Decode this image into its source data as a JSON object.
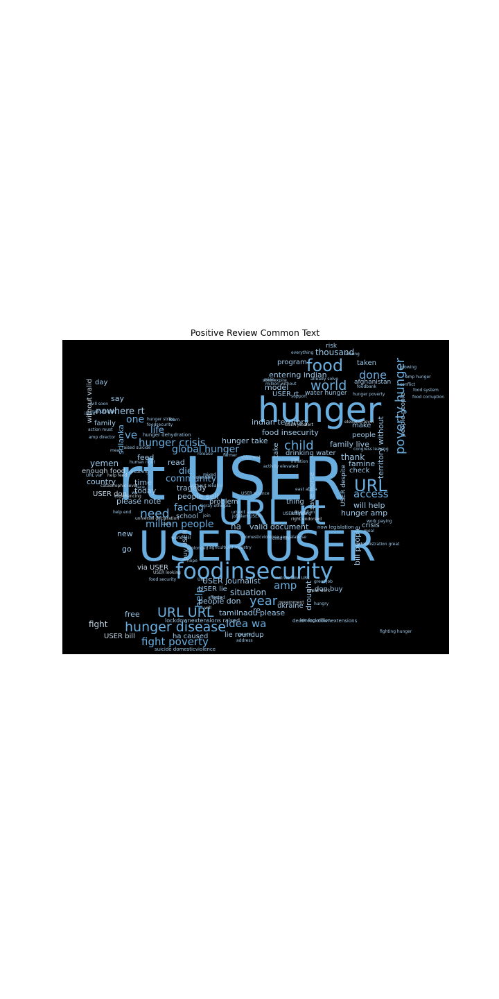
{
  "figure": {
    "title": "Positive Review Common Text"
  },
  "colors": {
    "background": "#000000",
    "primary_word": "#6aaee0",
    "secondary_word": "#9ec9ea",
    "tertiary_word": "#c7d9e8"
  },
  "word_cloud": {
    "words": [
      {
        "text": "rt USER",
        "size": "xl",
        "color": "primary_word"
      },
      {
        "text": "hunger",
        "size": "xl",
        "color": "primary_word"
      },
      {
        "text": "USER USER",
        "size": "xl",
        "color": "primary_word"
      },
      {
        "text": "URL rt",
        "size": "l",
        "color": "primary_word"
      },
      {
        "text": "foodinsecurity",
        "size": "l",
        "color": "primary_word"
      },
      {
        "text": "food",
        "size": "m",
        "color": "primary_word"
      },
      {
        "text": "URL",
        "size": "m",
        "color": "primary_word"
      },
      {
        "text": "world",
        "size": "m",
        "color": "primary_word"
      },
      {
        "text": "done",
        "size": "m",
        "color": "primary_word"
      },
      {
        "text": "child",
        "size": "m",
        "color": "primary_word"
      },
      {
        "text": "hunger disease",
        "size": "m",
        "color": "primary_word"
      },
      {
        "text": "URL URL",
        "size": "m",
        "color": "primary_word"
      },
      {
        "text": "need",
        "size": "m",
        "color": "primary_word"
      },
      {
        "text": "hunger crisis",
        "size": "m",
        "color": "primary_word"
      },
      {
        "text": "global hunger",
        "size": "s",
        "color": "primary_word"
      },
      {
        "text": "fight poverty",
        "size": "s",
        "color": "primary_word"
      },
      {
        "text": "idea wa",
        "size": "s",
        "color": "primary_word"
      },
      {
        "text": "year",
        "size": "m",
        "color": "primary_word"
      },
      {
        "text": "million people",
        "size": "s",
        "color": "primary_word"
      },
      {
        "text": "access",
        "size": "s",
        "color": "primary_word"
      },
      {
        "text": "poverty hunger",
        "size": "m",
        "color": "primary_word"
      },
      {
        "text": "nowhere rt",
        "size": "s",
        "color": "secondary_word"
      },
      {
        "text": "one",
        "size": "s",
        "color": "primary_word"
      },
      {
        "text": "ve",
        "size": "s",
        "color": "primary_word"
      },
      {
        "text": "life",
        "size": "s",
        "color": "primary_word"
      },
      {
        "text": "facing",
        "size": "s",
        "color": "primary_word"
      },
      {
        "text": "community",
        "size": "s",
        "color": "primary_word"
      },
      {
        "text": "die",
        "size": "s",
        "color": "primary_word"
      },
      {
        "text": "amp",
        "size": "s",
        "color": "primary_word"
      },
      {
        "text": "help",
        "size": "s",
        "color": "primary_word"
      },
      {
        "text": "situation",
        "size": "s",
        "color": "secondary_word"
      },
      {
        "text": "thousand",
        "size": "s",
        "color": "secondary_word"
      },
      {
        "text": "risk",
        "size": "xs",
        "color": "secondary_word"
      },
      {
        "text": "program",
        "size": "xs",
        "color": "secondary_word"
      },
      {
        "text": "entering indian",
        "size": "xs",
        "color": "secondary_word"
      },
      {
        "text": "model",
        "size": "xs",
        "color": "secondary_word"
      },
      {
        "text": "USER rt",
        "size": "xs",
        "color": "secondary_word"
      },
      {
        "text": "indian territory",
        "size": "xs",
        "color": "secondary_word"
      },
      {
        "text": "food insecurity",
        "size": "xs",
        "color": "secondary_word"
      },
      {
        "text": "drinking water",
        "size": "xs",
        "color": "secondary_word"
      },
      {
        "text": "hunger take",
        "size": "xs",
        "color": "secondary_word"
      },
      {
        "text": "family live",
        "size": "xs",
        "color": "secondary_word"
      },
      {
        "text": "thank",
        "size": "xs",
        "color": "secondary_word"
      },
      {
        "text": "famine",
        "size": "xs",
        "color": "secondary_word"
      },
      {
        "text": "check",
        "size": "xs",
        "color": "secondary_word"
      },
      {
        "text": "people",
        "size": "xs",
        "color": "secondary_word"
      },
      {
        "text": "make",
        "size": "xs",
        "color": "secondary_word"
      },
      {
        "text": "will help",
        "size": "xs",
        "color": "secondary_word"
      },
      {
        "text": "hunger amp",
        "size": "xs",
        "color": "secondary_word"
      },
      {
        "text": "crisis",
        "size": "xs",
        "color": "secondary_word"
      },
      {
        "text": "taken",
        "size": "xs",
        "color": "secondary_word"
      },
      {
        "text": "afghanistan",
        "size": "xs",
        "color": "secondary_word"
      },
      {
        "text": "water hunger",
        "size": "xs",
        "color": "secondary_word"
      },
      {
        "text": "yemen",
        "size": "xs",
        "color": "secondary_word"
      },
      {
        "text": "enough food",
        "size": "xs",
        "color": "tertiary_word"
      },
      {
        "text": "country",
        "size": "xs",
        "color": "secondary_word"
      },
      {
        "text": "USER don",
        "size": "xs",
        "color": "tertiary_word"
      },
      {
        "text": "feed",
        "size": "xs",
        "color": "secondary_word"
      },
      {
        "text": "time",
        "size": "xs",
        "color": "secondary_word"
      },
      {
        "text": "today",
        "size": "xs",
        "color": "secondary_word"
      },
      {
        "text": "please note",
        "size": "xs",
        "color": "secondary_word"
      },
      {
        "text": "read",
        "size": "xs",
        "color": "secondary_word"
      },
      {
        "text": "tragedy",
        "size": "xs",
        "color": "secondary_word"
      },
      {
        "text": "people sell",
        "size": "xs",
        "color": "secondary_word"
      },
      {
        "text": "problem",
        "size": "xs",
        "color": "secondary_word"
      },
      {
        "text": "school",
        "size": "xs",
        "color": "secondary_word"
      },
      {
        "text": "ha",
        "size": "xs",
        "color": "secondary_word"
      },
      {
        "text": "valid document",
        "size": "xs",
        "color": "secondary_word"
      },
      {
        "text": "thing",
        "size": "xs",
        "color": "secondary_word"
      },
      {
        "text": "new",
        "size": "xs",
        "color": "secondary_word"
      },
      {
        "text": "go",
        "size": "xs",
        "color": "secondary_word"
      },
      {
        "text": "via USER",
        "size": "xs",
        "color": "tertiary_word"
      },
      {
        "text": "USER journalist",
        "size": "xs",
        "color": "secondary_word"
      },
      {
        "text": "USER lie",
        "size": "xs",
        "color": "secondary_word"
      },
      {
        "text": "people don",
        "size": "xs",
        "color": "secondary_word"
      },
      {
        "text": "tamilnadu please",
        "size": "xs",
        "color": "secondary_word"
      },
      {
        "text": "ukraine",
        "size": "xs",
        "color": "secondary_word"
      },
      {
        "text": "don buy",
        "size": "xs",
        "color": "secondary_word"
      },
      {
        "text": "re",
        "size": "xs",
        "color": "secondary_word"
      },
      {
        "text": "free",
        "size": "xs",
        "color": "secondary_word"
      },
      {
        "text": "fight",
        "size": "xs",
        "color": "tertiary_word"
      },
      {
        "text": "USER bill",
        "size": "xs",
        "color": "tertiary_word"
      },
      {
        "text": "ha caused",
        "size": "xs",
        "color": "secondary_word"
      },
      {
        "text": "lie roundup",
        "size": "xs",
        "color": "secondary_word"
      },
      {
        "text": "day",
        "size": "xs",
        "color": "secondary_word"
      },
      {
        "text": "say",
        "size": "xs",
        "color": "secondary_word"
      },
      {
        "text": "family",
        "size": "xs",
        "color": "secondary_word"
      },
      {
        "text": "without",
        "size": "xs",
        "color": "tertiary_word"
      },
      {
        "text": "valid",
        "size": "xs",
        "color": "tertiary_word"
      },
      {
        "text": "srilanka",
        "size": "xs",
        "color": "primary_word"
      },
      {
        "text": "drought",
        "size": "xs",
        "color": "secondary_word"
      },
      {
        "text": "bill people",
        "size": "xs",
        "color": "secondary_word"
      },
      {
        "text": "territory without",
        "size": "xs",
        "color": "secondary_word"
      },
      {
        "text": "people people",
        "size": "xs",
        "color": "secondary_word"
      },
      {
        "text": "take",
        "size": "xs",
        "color": "secondary_word"
      },
      {
        "text": "save horse",
        "size": "xs",
        "color": "secondary_word"
      },
      {
        "text": "USER despite",
        "size": "xs",
        "color": "secondary_word"
      },
      {
        "text": "buy USER",
        "size": "xs",
        "color": "secondary_word"
      },
      {
        "text": "lockdownextensions raised",
        "size": "xxs",
        "color": "secondary_word"
      },
      {
        "text": "suicide domesticviolence",
        "size": "xxs",
        "color": "secondary_word"
      },
      {
        "text": "hunger dehydration",
        "size": "xxs",
        "color": "secondary_word"
      },
      {
        "text": "now legislation",
        "size": "xxs",
        "color": "secondary_word"
      },
      {
        "text": "act now",
        "size": "xxs",
        "color": "secondary_word"
      },
      {
        "text": "USER fighting",
        "size": "xxs",
        "color": "secondary_word"
      },
      {
        "text": "domesticviolence sexualabuse",
        "size": "xxs",
        "color": "secondary_word"
      },
      {
        "text": "death lockdownextensions",
        "size": "xxs",
        "color": "secondary_word"
      },
      {
        "text": "leaving million",
        "size": "xxs",
        "color": "secondary_word"
      },
      {
        "text": "east africa",
        "size": "xxs",
        "color": "secondary_word"
      },
      {
        "text": "meal",
        "size": "xxs",
        "color": "secondary_word"
      },
      {
        "text": "wa",
        "size": "xxs",
        "color": "secondary_word"
      },
      {
        "text": "help end",
        "size": "xxs",
        "color": "secondary_word"
      },
      {
        "text": "human right",
        "size": "xxs",
        "color": "secondary_word"
      },
      {
        "text": "help feed",
        "size": "xxs",
        "color": "tertiary_word"
      },
      {
        "text": "raised suicide",
        "size": "xxs",
        "color": "secondary_word"
      },
      {
        "text": "will soon",
        "size": "xxs",
        "color": "secondary_word"
      },
      {
        "text": "malnutrition",
        "size": "xxs",
        "color": "secondary_word"
      },
      {
        "text": "without reliable",
        "size": "xxs",
        "color": "secondary_word"
      },
      {
        "text": "tigray ethiopia",
        "size": "xxs",
        "color": "secondary_word"
      },
      {
        "text": "volunteer",
        "size": "xxs",
        "color": "secondary_word"
      },
      {
        "text": "support",
        "size": "xxs",
        "color": "secondary_word"
      },
      {
        "text": "conflict",
        "size": "xxs",
        "color": "secondary_word"
      },
      {
        "text": "hunger poverty",
        "size": "xxs",
        "color": "secondary_word"
      },
      {
        "text": "foodbank",
        "size": "xxs",
        "color": "secondary_word"
      },
      {
        "text": "congress leaving",
        "size": "xxs",
        "color": "secondary_word"
      },
      {
        "text": "food security",
        "size": "xxs",
        "color": "secondary_word"
      },
      {
        "text": "world will",
        "size": "xxs",
        "color": "secondary_word"
      },
      {
        "text": "government",
        "size": "xxs",
        "color": "tertiary_word"
      },
      {
        "text": "hungry",
        "size": "xxs",
        "color": "secondary_word"
      },
      {
        "text": "affected",
        "size": "xxs",
        "color": "secondary_word"
      },
      {
        "text": "address",
        "size": "xxs",
        "color": "secondary_word"
      },
      {
        "text": "join",
        "size": "xxs",
        "color": "secondary_word"
      },
      {
        "text": "inflation",
        "size": "xxs",
        "color": "secondary_word"
      },
      {
        "text": "million without",
        "size": "xxs",
        "color": "secondary_word"
      },
      {
        "text": "soon expire",
        "size": "xxs",
        "color": "secondary_word"
      },
      {
        "text": "everything",
        "size": "xxs",
        "color": "secondary_word"
      },
      {
        "text": "among",
        "size": "xxs",
        "color": "secondary_word"
      },
      {
        "text": "growing",
        "size": "xxs",
        "color": "secondary_word"
      },
      {
        "text": "food system",
        "size": "xxs",
        "color": "secondary_word"
      },
      {
        "text": "food corruption",
        "size": "xxs",
        "color": "secondary_word"
      },
      {
        "text": "action must",
        "size": "xxs",
        "color": "secondary_word"
      },
      {
        "text": "amp director",
        "size": "xxs",
        "color": "secondary_word"
      },
      {
        "text": "URL via",
        "size": "xxs",
        "color": "secondary_word"
      },
      {
        "text": "catastrophic level",
        "size": "xxs",
        "color": "tertiary_word"
      },
      {
        "text": "experiencing",
        "size": "xxs",
        "color": "tertiary_word"
      },
      {
        "text": "universal declaration",
        "size": "xxs",
        "color": "tertiary_word"
      },
      {
        "text": "USER looking",
        "size": "xxs",
        "color": "tertiary_word"
      },
      {
        "text": "right endorsed",
        "size": "xxs",
        "color": "tertiary_word"
      },
      {
        "text": "cost",
        "size": "xxs",
        "color": "secondary_word"
      },
      {
        "text": "will",
        "size": "xxs",
        "color": "tertiary_word"
      },
      {
        "text": "great work",
        "size": "xxs",
        "color": "tertiary_word"
      },
      {
        "text": "great job",
        "size": "xxs",
        "color": "secondary_word"
      },
      {
        "text": "work paying",
        "size": "xxs",
        "color": "secondary_word"
      },
      {
        "text": "administration great",
        "size": "xxs",
        "color": "secondary_word"
      },
      {
        "text": "disruption",
        "size": "xxs",
        "color": "secondary_word"
      },
      {
        "text": "hunger strike",
        "size": "xxs",
        "color": "secondary_word"
      },
      {
        "text": "learn",
        "size": "xxs",
        "color": "secondary_word"
      },
      {
        "text": "foodsecurity",
        "size": "xxs",
        "color": "secondary_word"
      },
      {
        "text": "great.org",
        "size": "xxs",
        "color": "secondary_word"
      },
      {
        "text": "release",
        "size": "xxs",
        "color": "secondary_word"
      },
      {
        "text": "USER jobalert",
        "size": "xxs",
        "color": "tertiary_word"
      },
      {
        "text": "already solve",
        "size": "xxs",
        "color": "secondary_word"
      },
      {
        "text": "elevated level",
        "size": "xxs",
        "color": "tertiary_word"
      },
      {
        "text": "farmer",
        "size": "xxs",
        "color": "secondary_word"
      },
      {
        "text": "malnutrition URL",
        "size": "xxs",
        "color": "secondary_word"
      },
      {
        "text": "URL",
        "size": "xxs",
        "color": "secondary_word"
      },
      {
        "text": "agricultural ministry",
        "size": "xxs",
        "color": "secondary_word"
      },
      {
        "text": "prolonged",
        "size": "xxs",
        "color": "secondary_word"
      },
      {
        "text": "urgent action",
        "size": "xxs",
        "color": "secondary_word"
      },
      {
        "text": "jobalert USER",
        "size": "xxs",
        "color": "secondary_word"
      },
      {
        "text": "activity elevated",
        "size": "xxs",
        "color": "secondary_word"
      },
      {
        "text": "child life",
        "size": "xxs",
        "color": "secondary_word"
      },
      {
        "text": "mixed",
        "size": "xxs",
        "color": "secondary_word"
      },
      {
        "text": "shipment",
        "size": "xxs",
        "color": "secondary_word"
      },
      {
        "text": "USER science",
        "size": "xxs",
        "color": "secondary_word"
      },
      {
        "text": "fighting hunger",
        "size": "xxs",
        "color": "secondary_word"
      },
      {
        "text": "amp hunger",
        "size": "xxs",
        "color": "secondary_word"
      },
      {
        "text": "issue",
        "size": "xxs",
        "color": "secondary_word"
      },
      {
        "text": "mean",
        "size": "xxs",
        "color": "secondary_word"
      },
      {
        "text": "face",
        "size": "xxs",
        "color": "secondary_word"
      },
      {
        "text": "save",
        "size": "xxs",
        "color": "secondary_word"
      },
      {
        "text": "hope",
        "size": "xxs",
        "color": "secondary_word"
      },
      {
        "text": "amp",
        "size": "xxs",
        "color": "secondary_word"
      },
      {
        "text": "peace",
        "size": "xxs",
        "color": "secondary_word"
      },
      {
        "text": "mine",
        "size": "xxs",
        "color": "secondary_word"
      }
    ]
  }
}
